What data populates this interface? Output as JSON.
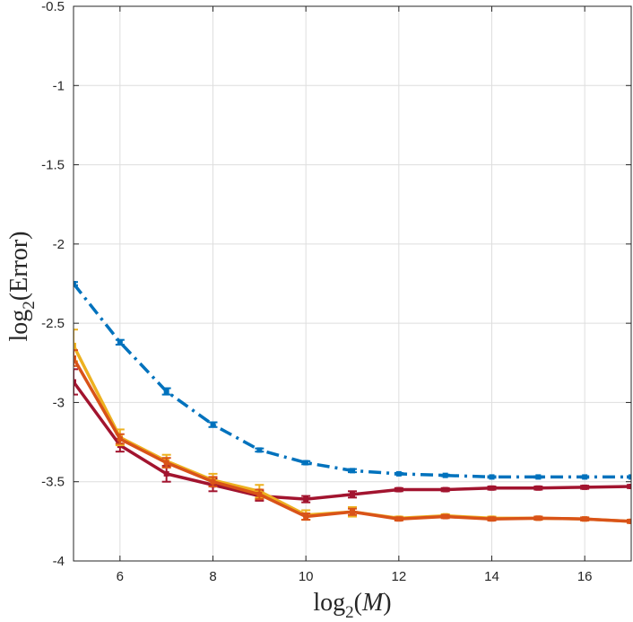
{
  "chart_data": {
    "type": "line",
    "title": "",
    "xlabel": {
      "base": "log",
      "sub": "2",
      "open": "(",
      "var": "M",
      "close": ")"
    },
    "ylabel": {
      "base": "log",
      "sub": "2",
      "open": "(",
      "var": "Error",
      "close": ")"
    },
    "xlim": [
      5,
      17
    ],
    "ylim": [
      -4,
      -0.5
    ],
    "xticks": [
      6,
      8,
      10,
      12,
      14,
      16
    ],
    "xtick_labels": [
      "6",
      "8",
      "10",
      "12",
      "14",
      "16"
    ],
    "yticks": [
      -4,
      -3.5,
      -3,
      -2.5,
      -2,
      -1.5,
      -1,
      -0.5
    ],
    "ytick_labels": [
      "-4",
      "-3.5",
      "-3",
      "-2.5",
      "-2",
      "-1.5",
      "-1",
      "-0.5"
    ],
    "grid": true,
    "x": [
      5,
      6,
      7,
      8,
      9,
      10,
      11,
      12,
      13,
      14,
      15,
      16,
      17
    ],
    "series": [
      {
        "name": "blue",
        "color": "#0072bd",
        "dash": "dashdot",
        "values": [
          -2.25,
          -2.62,
          -2.93,
          -3.14,
          -3.3,
          -3.38,
          -3.43,
          -3.45,
          -3.46,
          -3.47,
          -3.47,
          -3.47,
          -3.47
        ],
        "err": [
          0.01,
          0.015,
          0.02,
          0.015,
          0.01,
          0.01,
          0.01,
          0.005,
          0.005,
          0.005,
          0.005,
          0.005,
          0.005
        ]
      },
      {
        "name": "red",
        "color": "#a2142f",
        "dash": "solid",
        "values": [
          -2.87,
          -3.27,
          -3.45,
          -3.52,
          -3.59,
          -3.61,
          -3.58,
          -3.55,
          -3.55,
          -3.54,
          -3.54,
          -3.535,
          -3.53
        ],
        "err": [
          0.08,
          0.04,
          0.05,
          0.04,
          0.03,
          0.02,
          0.02,
          0.01,
          0.01,
          0.01,
          0.01,
          0.01,
          0.01
        ]
      },
      {
        "name": "yellow",
        "color": "#edb120",
        "dash": "solid",
        "values": [
          -2.64,
          -3.22,
          -3.37,
          -3.49,
          -3.56,
          -3.71,
          -3.69,
          -3.73,
          -3.715,
          -3.73,
          -3.73,
          -3.735,
          -3.75
        ],
        "err": [
          0.1,
          0.05,
          0.04,
          0.04,
          0.04,
          0.03,
          0.03,
          0.01,
          0.01,
          0.01,
          0.01,
          0.01,
          0.01
        ]
      },
      {
        "name": "orange",
        "color": "#d95319",
        "dash": "solid",
        "values": [
          -2.72,
          -3.23,
          -3.38,
          -3.5,
          -3.58,
          -3.72,
          -3.69,
          -3.735,
          -3.72,
          -3.735,
          -3.73,
          -3.735,
          -3.75
        ],
        "err": [
          0.05,
          0.03,
          0.03,
          0.03,
          0.03,
          0.02,
          0.02,
          0.01,
          0.01,
          0.01,
          0.01,
          0.01,
          0.01
        ]
      }
    ]
  }
}
